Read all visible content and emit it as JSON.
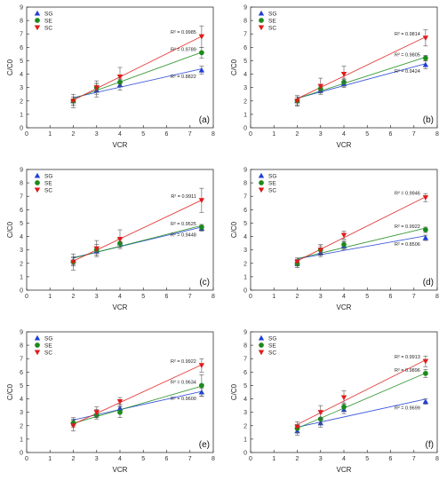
{
  "colors": {
    "SG": "#1f3fd6",
    "SE": "#1b8a1b",
    "SC": "#e01a1a"
  },
  "chart_data": [
    {
      "type": "scatter",
      "panel": "(a)",
      "xlabel": "VCR",
      "ylabel": "C/C0",
      "xlim": [
        0,
        8
      ],
      "ylim": [
        0,
        9
      ],
      "xticks": [
        "0",
        "1",
        "2",
        "3",
        "4",
        "5",
        "6",
        "7",
        "8"
      ],
      "yticks": [
        "0",
        "1",
        "2",
        "3",
        "4",
        "5",
        "6",
        "7",
        "8",
        "9"
      ],
      "x": [
        2,
        3,
        4,
        7.5
      ],
      "series": [
        {
          "name": "SG",
          "values": [
            2.0,
            2.8,
            3.2,
            4.3
          ],
          "err": [
            0.5,
            0.5,
            0.4,
            0.3
          ],
          "r2": "R² = 0.8822"
        },
        {
          "name": "SE",
          "values": [
            2.0,
            3.0,
            3.4,
            5.6
          ],
          "err": [
            0.3,
            0.3,
            0.3,
            0.4
          ],
          "r2": "R² = 0.9789"
        },
        {
          "name": "SC",
          "values": [
            2.0,
            3.0,
            3.8,
            6.8
          ],
          "err": [
            0.3,
            0.5,
            0.7,
            0.8
          ],
          "r2": "R² = 0.9985"
        }
      ]
    },
    {
      "type": "scatter",
      "panel": "(b)",
      "xlabel": "VCR",
      "ylabel": "C/C0",
      "xlim": [
        0,
        8
      ],
      "ylim": [
        0,
        9
      ],
      "xticks": [
        "0",
        "1",
        "2",
        "3",
        "4",
        "5",
        "6",
        "7",
        "8"
      ],
      "yticks": [
        "0",
        "1",
        "2",
        "3",
        "4",
        "5",
        "6",
        "7",
        "8",
        "9"
      ],
      "x": [
        2,
        3,
        4,
        7.5
      ],
      "series": [
        {
          "name": "SG",
          "values": [
            2.0,
            2.8,
            3.3,
            4.7
          ],
          "err": [
            0.3,
            0.3,
            0.3,
            0.3
          ],
          "r2": "R² = 0.9424"
        },
        {
          "name": "SE",
          "values": [
            2.0,
            2.9,
            3.4,
            5.2
          ],
          "err": [
            0.3,
            0.3,
            0.3,
            0.2
          ],
          "r2": "R² = 0.9805"
        },
        {
          "name": "SC",
          "values": [
            2.0,
            3.1,
            4.0,
            6.7
          ],
          "err": [
            0.4,
            0.6,
            0.6,
            0.6
          ],
          "r2": "R² = 0.9814"
        }
      ]
    },
    {
      "type": "scatter",
      "panel": "(c)",
      "xlabel": "VCR",
      "ylabel": "C/C0",
      "xlim": [
        0,
        8
      ],
      "ylim": [
        0,
        9
      ],
      "xticks": [
        "0",
        "1",
        "2",
        "3",
        "4",
        "5",
        "6",
        "7",
        "8"
      ],
      "yticks": [
        "0",
        "1",
        "2",
        "3",
        "4",
        "5",
        "6",
        "7",
        "8",
        "9"
      ],
      "x": [
        2,
        3,
        4,
        7.5
      ],
      "series": [
        {
          "name": "SG",
          "values": [
            2.2,
            2.9,
            3.5,
            4.6
          ],
          "err": [
            0.3,
            0.3,
            0.3,
            0.2
          ],
          "r2": "R² = 0.9448"
        },
        {
          "name": "SE",
          "values": [
            2.1,
            3.0,
            3.5,
            4.7
          ],
          "err": [
            0.3,
            0.4,
            0.3,
            0.2
          ],
          "r2": "R² = 0.9525"
        },
        {
          "name": "SC",
          "values": [
            2.1,
            3.1,
            3.8,
            6.7
          ],
          "err": [
            0.6,
            0.6,
            0.7,
            0.9
          ],
          "r2": "R² = 0.9911"
        }
      ]
    },
    {
      "type": "scatter",
      "panel": "(d)",
      "xlabel": "VCR",
      "ylabel": "C/C0",
      "xlim": [
        0,
        8
      ],
      "ylim": [
        0,
        9
      ],
      "xticks": [
        "0",
        "1",
        "2",
        "3",
        "4",
        "5",
        "6",
        "7",
        "8"
      ],
      "yticks": [
        "0",
        "1",
        "2",
        "3",
        "4",
        "5",
        "6",
        "7",
        "8",
        "9"
      ],
      "x": [
        2,
        3,
        4,
        7.5
      ],
      "series": [
        {
          "name": "SG",
          "values": [
            2.0,
            2.8,
            3.3,
            3.9
          ],
          "err": [
            0.3,
            0.3,
            0.3,
            0.2
          ],
          "r2": "R² = 0.8506"
        },
        {
          "name": "SE",
          "values": [
            2.0,
            3.0,
            3.4,
            4.5
          ],
          "err": [
            0.3,
            0.3,
            0.3,
            0.2
          ],
          "r2": "R² = 0.9922"
        },
        {
          "name": "SC",
          "values": [
            2.1,
            3.0,
            4.1,
            6.9
          ],
          "err": [
            0.3,
            0.4,
            0.3,
            0.3
          ],
          "r2": "R² = 0.9946"
        }
      ]
    },
    {
      "type": "scatter",
      "panel": "(e)",
      "xlabel": "VCR",
      "ylabel": "C/C0",
      "xlim": [
        0,
        8
      ],
      "ylim": [
        0,
        9
      ],
      "xticks": [
        "0",
        "1",
        "2",
        "3",
        "4",
        "5",
        "6",
        "7",
        "8"
      ],
      "yticks": [
        "0",
        "1",
        "2",
        "3",
        "4",
        "5",
        "6",
        "7",
        "8",
        "9"
      ],
      "x": [
        2,
        3,
        4,
        7.5
      ],
      "series": [
        {
          "name": "SG",
          "values": [
            2.3,
            2.9,
            3.3,
            4.5
          ],
          "err": [
            0.3,
            0.3,
            0.3,
            0.3
          ],
          "r2": "R² = 0.9600"
        },
        {
          "name": "SE",
          "values": [
            2.2,
            2.8,
            3.0,
            5.0
          ],
          "err": [
            0.3,
            0.3,
            0.4,
            0.8
          ],
          "r2": "R² = 0.9634"
        },
        {
          "name": "SC",
          "values": [
            2.0,
            3.0,
            3.8,
            6.5
          ],
          "err": [
            0.4,
            0.4,
            0.3,
            0.5
          ],
          "r2": "R² = 0.9922"
        }
      ]
    },
    {
      "type": "scatter",
      "panel": "(f)",
      "xlabel": "VCR",
      "ylabel": "C/C0",
      "xlim": [
        0,
        8
      ],
      "ylim": [
        0,
        9
      ],
      "xticks": [
        "0",
        "1",
        "2",
        "3",
        "4",
        "5",
        "6",
        "7",
        "8"
      ],
      "yticks": [
        "0",
        "1",
        "2",
        "3",
        "4",
        "5",
        "6",
        "7",
        "8",
        "9"
      ],
      "x": [
        2,
        3,
        4,
        7.5
      ],
      "series": [
        {
          "name": "SG",
          "values": [
            1.6,
            2.2,
            3.2,
            3.8
          ],
          "err": [
            0.3,
            0.3,
            0.3,
            0.2
          ],
          "r2": "R² = 0.9699"
        },
        {
          "name": "SE",
          "values": [
            1.8,
            2.5,
            3.4,
            5.9
          ],
          "err": [
            0.3,
            0.4,
            0.3,
            0.3
          ],
          "r2": "R² = 0.9896"
        },
        {
          "name": "SC",
          "values": [
            1.9,
            3.0,
            4.1,
            6.8
          ],
          "err": [
            0.4,
            0.5,
            0.5,
            0.4
          ],
          "r2": "R² = 0.9913"
        }
      ]
    }
  ]
}
